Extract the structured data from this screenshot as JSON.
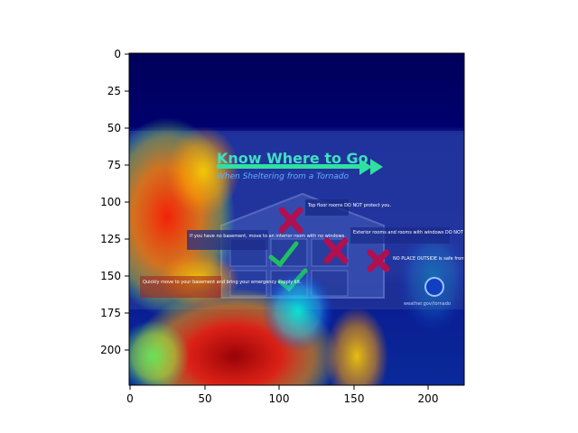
{
  "image": {
    "type": "heatmap-overlay",
    "description_kind": "attention heatmap over poster image"
  },
  "axes": {
    "x_ticks": [
      "0",
      "50",
      "100",
      "150",
      "200"
    ],
    "y_ticks": [
      "0",
      "25",
      "50",
      "75",
      "100",
      "125",
      "150",
      "175",
      "200"
    ],
    "xlim": [
      0,
      224
    ],
    "ylim": [
      224,
      0
    ]
  },
  "poster": {
    "title": "Know Where to Go",
    "subtitle": "When Sheltering from a Tornado",
    "note_top_floor": "Top floor rooms DO NOT protect you.",
    "note_basement": "If you have no basement, move to an interior room with no windows.",
    "note_exterior": "Exterior rooms and rooms with windows DO NOT protect you.",
    "note_outside": "NO PLACE OUTSIDE is safe from a tornado.",
    "note_quickly": "Quickly move to your basement and bring your emergency supply kit.",
    "footer_url": "weather.gov/tornado"
  },
  "colors": {
    "heat_low": "#00007f",
    "heat_mid": "#00ffff",
    "heat_high": "#ff0000",
    "poster_bg": "#1c2a7a",
    "title_color": "#3fe0c0",
    "x_mark": "#b01050"
  }
}
